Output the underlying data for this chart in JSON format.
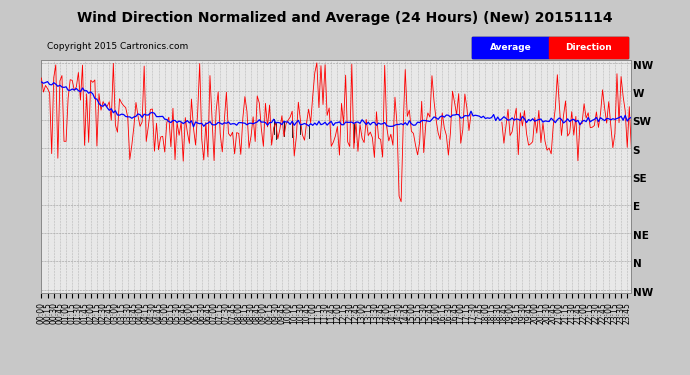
{
  "title": "Wind Direction Normalized and Average (24 Hours) (New) 20151114",
  "copyright": "Copyright 2015 Cartronics.com",
  "legend_labels": [
    "Average",
    "Direction"
  ],
  "legend_colors": [
    "blue",
    "red"
  ],
  "ytick_labels": [
    "NW",
    "W",
    "SW",
    "S",
    "SE",
    "E",
    "NE",
    "N",
    "NW"
  ],
  "ytick_values": [
    8,
    7,
    6,
    5,
    4,
    3,
    2,
    1,
    0
  ],
  "ylim": [
    -0.1,
    8.1
  ],
  "background_color": "#c8c8c8",
  "plot_bg_color": "#e8e8e8",
  "grid_color": "#aaaaaa",
  "title_fontsize": 10,
  "copyright_fontsize": 6.5,
  "tick_fontsize": 7.5,
  "xtick_fontsize": 5.5
}
